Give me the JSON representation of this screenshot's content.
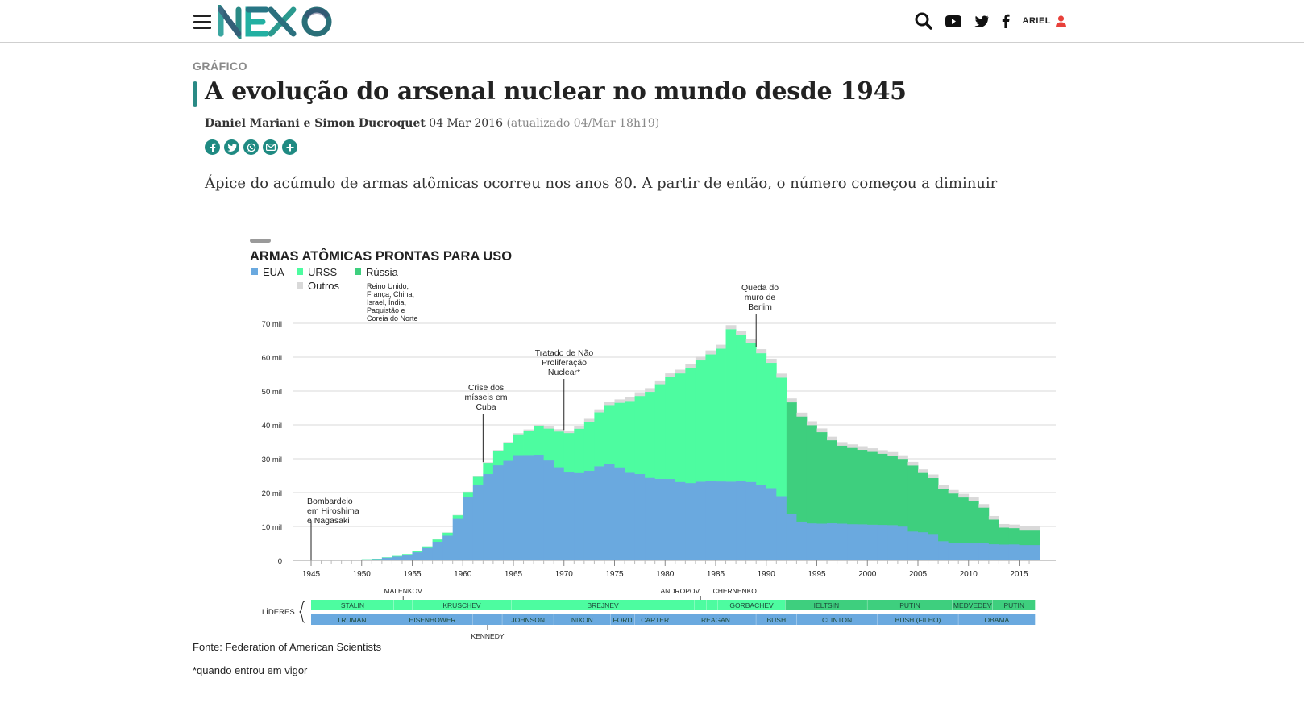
{
  "header": {
    "menu_icon": "hamburger-menu-icon",
    "logo_text": "NEXO",
    "user_name": "ARIEL",
    "icons": [
      "search-icon",
      "youtube-icon",
      "twitter-icon",
      "facebook-icon",
      "user-icon"
    ]
  },
  "article": {
    "kicker": "GRÁFICO",
    "title": "A evolução do arsenal nuclear no mundo desde 1945",
    "authors": "Daniel Mariani e Simon Ducroquet",
    "date": "04 Mar 2016",
    "updated": "(atualizado 04/Mar 18h19)",
    "share_icons": [
      "facebook-icon",
      "twitter-icon",
      "whatsapp-icon",
      "email-icon",
      "plus-icon"
    ],
    "dek": "Ápice do acúmulo de armas atômicas ocorreu nos anos 80. A partir de então, o número começou a diminuir",
    "source": "Fonte: Federation of American Scientists",
    "footnote": "*quando entrou em vigor"
  },
  "colors": {
    "accent": "#2a8a85",
    "eua": "#6aa9df",
    "urss": "#4dfca0",
    "russia": "#3ecf7e",
    "outros": "#d9d9d9",
    "grid": "#d8d8d8"
  },
  "chart_data": {
    "type": "area",
    "stacked": true,
    "title": "ARMAS ATÔMICAS PRONTAS PARA USO",
    "legend": [
      {
        "key": "eua",
        "label": "EUA"
      },
      {
        "key": "urss",
        "label": "URSS"
      },
      {
        "key": "russia",
        "label": "Rússia"
      },
      {
        "key": "outros",
        "label": "Outros",
        "note": "Reino Unido, França, China, Israel, Índia, Paquistão e Coreia do Norte"
      }
    ],
    "x_start": 1945,
    "x_end": 2016,
    "xticks": [
      1945,
      1950,
      1955,
      1960,
      1965,
      1970,
      1975,
      1980,
      1985,
      1990,
      1995,
      2000,
      2005,
      2010,
      2015
    ],
    "ylim": [
      0,
      70000
    ],
    "yticks": [
      0,
      10000,
      20000,
      30000,
      40000,
      50000,
      60000,
      70000
    ],
    "ytick_labels": [
      "0",
      "10 mil",
      "20 mil",
      "30 mil",
      "40 mil",
      "50 mil",
      "60 mil",
      "70 mil"
    ],
    "years": [
      1945,
      1946,
      1947,
      1948,
      1949,
      1950,
      1951,
      1952,
      1953,
      1954,
      1955,
      1956,
      1957,
      1958,
      1959,
      1960,
      1961,
      1962,
      1963,
      1964,
      1965,
      1966,
      1967,
      1968,
      1969,
      1970,
      1971,
      1972,
      1973,
      1974,
      1975,
      1976,
      1977,
      1978,
      1979,
      1980,
      1981,
      1982,
      1983,
      1984,
      1985,
      1986,
      1987,
      1988,
      1989,
      1990,
      1991,
      1992,
      1993,
      1994,
      1995,
      1996,
      1997,
      1998,
      1999,
      2000,
      2001,
      2002,
      2003,
      2004,
      2005,
      2006,
      2007,
      2008,
      2009,
      2010,
      2011,
      2012,
      2013,
      2014,
      2015,
      2016
    ],
    "series": [
      {
        "name": "EUA",
        "key": "eua",
        "values": [
          2,
          9,
          13,
          50,
          170,
          299,
          438,
          841,
          1169,
          1703,
          2422,
          3692,
          5543,
          7345,
          12298,
          18638,
          22229,
          25540,
          28133,
          29463,
          31139,
          31175,
          31255,
          29561,
          27552,
          26008,
          25830,
          26516,
          27835,
          28537,
          27519,
          25914,
          25542,
          24418,
          24138,
          24104,
          23208,
          22886,
          23305,
          23459,
          23368,
          23317,
          23575,
          23205,
          22217,
          21392,
          19008,
          13708,
          11511,
          10979,
          10904,
          11011,
          10903,
          10732,
          10685,
          10577,
          10526,
          10457,
          10027,
          8570,
          8360,
          7853,
          5709,
          5273,
          5113,
          5066,
          5113,
          4804,
          4717,
          4760,
          4571,
          4571
        ]
      },
      {
        "name": "URSS",
        "key": "urss",
        "values": [
          0,
          0,
          0,
          0,
          1,
          5,
          25,
          50,
          120,
          150,
          200,
          426,
          660,
          869,
          1060,
          1605,
          2471,
          3322,
          4238,
          5221,
          6129,
          7089,
          8339,
          9399,
          10538,
          11643,
          13092,
          14478,
          15915,
          17385,
          19055,
          21205,
          23044,
          25393,
          27935,
          30062,
          32049,
          33952,
          35804,
          37431,
          39197,
          45000,
          43000,
          41000,
          39000,
          37000,
          35000,
          0,
          0,
          0,
          0,
          0,
          0,
          0,
          0,
          0,
          0,
          0,
          0,
          0,
          0,
          0,
          0,
          0,
          0,
          0,
          0,
          0,
          0,
          0,
          0,
          0
        ]
      },
      {
        "name": "Rússia",
        "key": "russia",
        "values": [
          0,
          0,
          0,
          0,
          0,
          0,
          0,
          0,
          0,
          0,
          0,
          0,
          0,
          0,
          0,
          0,
          0,
          0,
          0,
          0,
          0,
          0,
          0,
          0,
          0,
          0,
          0,
          0,
          0,
          0,
          0,
          0,
          0,
          0,
          0,
          0,
          0,
          0,
          0,
          0,
          0,
          0,
          0,
          0,
          0,
          0,
          0,
          33000,
          31000,
          29000,
          27000,
          24500,
          23000,
          22500,
          22000,
          21500,
          21000,
          20500,
          20000,
          19500,
          17500,
          16500,
          15500,
          14500,
          13500,
          12500,
          10500,
          7300,
          5000,
          4800,
          4500,
          4500
        ]
      },
      {
        "name": "Outros",
        "key": "outros",
        "values": [
          0,
          0,
          0,
          0,
          0,
          0,
          0,
          0,
          0,
          0,
          0,
          0,
          10,
          20,
          30,
          30,
          50,
          100,
          200,
          250,
          300,
          400,
          500,
          600,
          650,
          700,
          750,
          800,
          850,
          900,
          950,
          1000,
          1050,
          1050,
          1050,
          1050,
          1050,
          1050,
          1050,
          1100,
          1100,
          1150,
          1150,
          1150,
          1150,
          1150,
          1150,
          1100,
          1100,
          1100,
          1050,
          1000,
          1000,
          1000,
          1000,
          1000,
          1000,
          1000,
          1000,
          1000,
          1000,
          1000,
          1000,
          1000,
          1000,
          1000,
          1000,
          1000,
          1000,
          1000,
          1000,
          1000
        ]
      }
    ],
    "annotations": [
      {
        "year": 1945,
        "y": 0,
        "text": [
          "Bombardeio",
          "em Hiroshima",
          "e Nagasaki"
        ]
      },
      {
        "year": 1962,
        "y": 29000,
        "text": [
          "Crise dos",
          "mísseis em",
          "Cuba"
        ]
      },
      {
        "year": 1970,
        "y": 38500,
        "text": [
          "Tratado de Não",
          "Proliferação",
          "Nuclear*"
        ]
      },
      {
        "year": 1989,
        "y": 63000,
        "text": [
          "Queda do",
          "muro de",
          "Berlim"
        ]
      }
    ],
    "leaders_label": "LÍDERES",
    "leaders_soviet": [
      {
        "name": "STALIN",
        "start": 1945,
        "end": 1953.2
      },
      {
        "name": "MALENKOV",
        "start": 1953.2,
        "end": 1955,
        "label_above": true
      },
      {
        "name": "KRUSCHEV",
        "start": 1955,
        "end": 1964.8
      },
      {
        "name": "BREJNEV",
        "start": 1964.8,
        "end": 1982.9
      },
      {
        "name": "ANDROPOV",
        "start": 1982.9,
        "end": 1984.1,
        "label_above": true
      },
      {
        "name": "CHERNENKO",
        "start": 1984.1,
        "end": 1985.2,
        "label_above": true
      },
      {
        "name": "GORBACHEV",
        "start": 1985.2,
        "end": 1991.9
      },
      {
        "name": "IELTSIN",
        "start": 1991.9,
        "end": 2000
      },
      {
        "name": "PUTIN",
        "start": 2000,
        "end": 2008.4
      },
      {
        "name": "MEDVEDEV",
        "start": 2008.4,
        "end": 2012.4
      },
      {
        "name": "PUTIN",
        "start": 2012.4,
        "end": 2016.6
      }
    ],
    "leaders_us": [
      {
        "name": "TRUMAN",
        "start": 1945,
        "end": 1953
      },
      {
        "name": "EISENHOWER",
        "start": 1953,
        "end": 1961
      },
      {
        "name": "KENNEDY",
        "start": 1961,
        "end": 1963.9,
        "label_below": true
      },
      {
        "name": "JOHNSON",
        "start": 1963.9,
        "end": 1969
      },
      {
        "name": "NIXON",
        "start": 1969,
        "end": 1974.6
      },
      {
        "name": "FORD",
        "start": 1974.6,
        "end": 1977
      },
      {
        "name": "CARTER",
        "start": 1977,
        "end": 1981
      },
      {
        "name": "REAGAN",
        "start": 1981,
        "end": 1989
      },
      {
        "name": "BUSH",
        "start": 1989,
        "end": 1993
      },
      {
        "name": "CLINTON",
        "start": 1993,
        "end": 2001
      },
      {
        "name": "BUSH (FILHO)",
        "start": 2001,
        "end": 2009
      },
      {
        "name": "OBAMA",
        "start": 2009,
        "end": 2016.6
      }
    ]
  }
}
